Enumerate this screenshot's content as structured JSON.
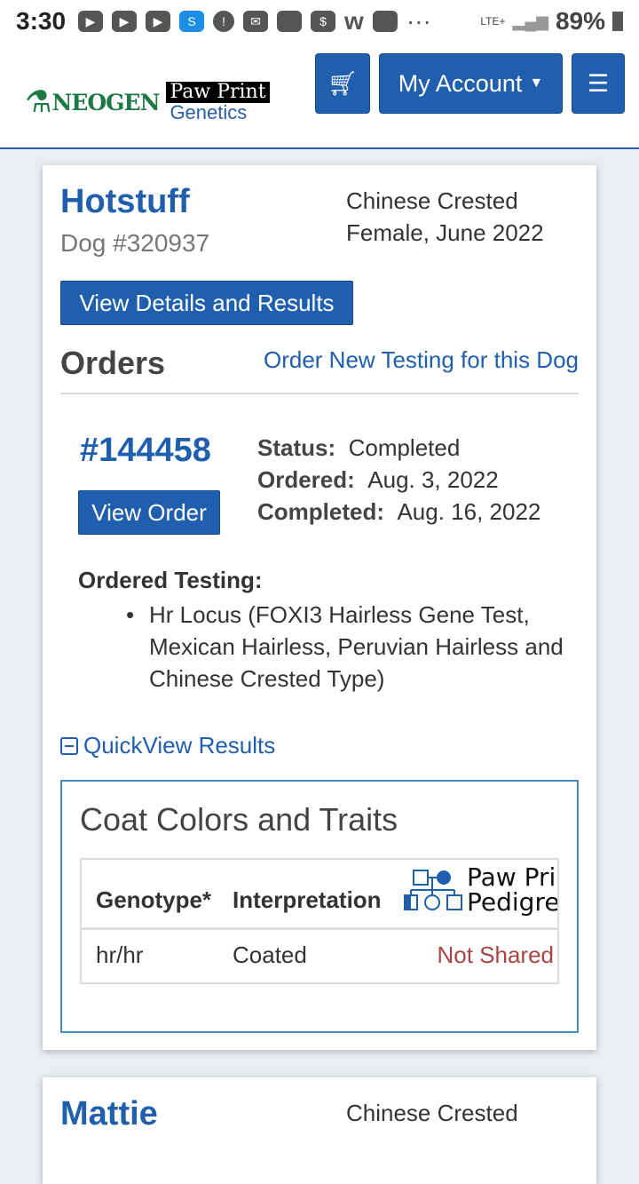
{
  "status_bar": {
    "time": "3:30",
    "network": "LTE+",
    "battery": "89%"
  },
  "navbar": {
    "logo_neogen": "NEOGEN",
    "logo_ppg_top": "Paw Print",
    "logo_ppg_bottom": "Genetics",
    "account_label": "My Account"
  },
  "dogs": [
    {
      "name": "Hotstuff",
      "number": "Dog #320937",
      "breed": "Chinese Crested",
      "sex_birth": "Female, June 2022",
      "details_button": "View Details and Results",
      "orders_heading": "Orders",
      "order_new_link": "Order New Testing for this Dog",
      "order": {
        "number": "#144458",
        "view_button": "View Order",
        "status_label": "Status:",
        "status": "Completed",
        "ordered_label": "Ordered:",
        "ordered": "Aug. 3, 2022",
        "completed_label": "Completed:",
        "completed": "Aug. 16, 2022",
        "ordered_testing_label": "Ordered Testing:",
        "tests": [
          "Hr Locus (FOXI3 Hairless Gene Test, Mexican Hairless, Peruvian Hairless and Chinese Crested Type)"
        ],
        "quickview_label": "QuickView Results",
        "results": {
          "title": "Coat Colors and Traits",
          "headers": [
            "Genotype*",
            "Interpretation",
            "Paw Print",
            "Pedigree"
          ],
          "rows": [
            {
              "genotype": "hr/hr",
              "interpretation": "Coated",
              "pedigree": "Not Shared"
            }
          ]
        }
      }
    },
    {
      "name": "Mattie",
      "breed": "Chinese Crested"
    }
  ],
  "colors": {
    "primary": "#1f5fae",
    "not_shared": "#a94442",
    "neogen_green": "#1d7a45"
  }
}
